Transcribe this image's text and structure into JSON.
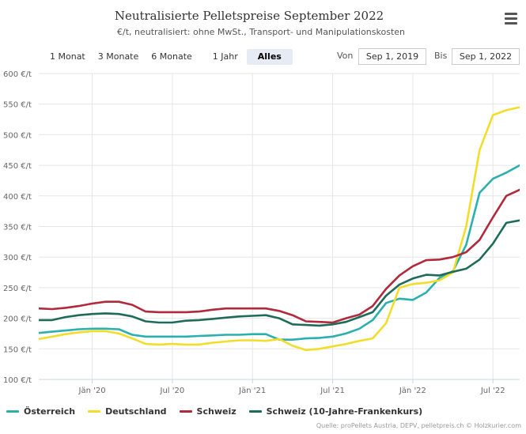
{
  "title": "Neutralisierte Pelletspreise September 2022",
  "subtitle": "€/t, neutralisiert: ohne MwSt., Transport- und Manipulationskosten",
  "range_selector": {
    "buttons": [
      "1 Monat",
      "3 Monate",
      "6 Monate",
      "1 Jahr",
      "Alles"
    ],
    "active": "Alles",
    "from_label": "Von",
    "from_value": "Sep 1, 2019",
    "to_label": "Bis",
    "to_value": "Sep 1, 2022"
  },
  "credits": "Quelle: proPellets Austria, DEPV, pelletpreis.ch © Holzkurier.com",
  "menu_icon": "hamburger-menu-icon",
  "chart_data": {
    "type": "line",
    "title": "Neutralisierte Pelletspreise September 2022",
    "ylim": [
      100,
      600
    ],
    "yticks": [
      100,
      150,
      200,
      250,
      300,
      350,
      400,
      450,
      500,
      550,
      600
    ],
    "ytick_labels": [
      "100 €/t",
      "150 €/t",
      "200 €/t",
      "250 €/t",
      "300 €/t",
      "350 €/t",
      "400 €/t",
      "450 €/t",
      "500 €/t",
      "550 €/t",
      "600 €/t"
    ],
    "xlim": [
      0,
      36
    ],
    "xticks": [
      4,
      10,
      16,
      22,
      28,
      34
    ],
    "xtick_labels": [
      "Jän '20",
      "Jul '20",
      "Jän '21",
      "Jul '21",
      "Jän '22",
      "Jul '22"
    ],
    "x": [
      0,
      1,
      2,
      3,
      4,
      5,
      6,
      7,
      8,
      9,
      10,
      11,
      12,
      13,
      14,
      15,
      16,
      17,
      18,
      19,
      20,
      21,
      22,
      23,
      24,
      25,
      26,
      27,
      28,
      29,
      30,
      31,
      32,
      33,
      34,
      35,
      36
    ],
    "series": [
      {
        "name": "Österreich",
        "color": "#2bb0b0",
        "values": [
          176,
          178,
          180,
          182,
          183,
          183,
          182,
          173,
          170,
          170,
          170,
          170,
          171,
          172,
          173,
          173,
          174,
          174,
          165,
          165,
          167,
          168,
          170,
          175,
          183,
          197,
          225,
          232,
          230,
          242,
          266,
          277,
          320,
          405,
          428,
          438,
          450
        ]
      },
      {
        "name": "Deutschland",
        "color": "#f2de2a",
        "values": [
          166,
          170,
          174,
          177,
          179,
          179,
          175,
          167,
          158,
          157,
          158,
          157,
          157,
          160,
          162,
          164,
          164,
          163,
          166,
          155,
          148,
          150,
          154,
          158,
          163,
          167,
          192,
          250,
          256,
          258,
          262,
          275,
          350,
          475,
          532,
          540,
          545
        ]
      },
      {
        "name": "Schweiz",
        "color": "#b02a3c",
        "values": [
          216,
          215,
          217,
          220,
          224,
          227,
          227,
          222,
          211,
          210,
          210,
          210,
          211,
          214,
          216,
          216,
          216,
          216,
          212,
          205,
          195,
          194,
          193,
          200,
          206,
          220,
          248,
          270,
          285,
          295,
          296,
          300,
          308,
          328,
          365,
          400,
          410
        ]
      },
      {
        "name": "Schweiz (10-Jahre-Frankenkurs)",
        "color": "#1e6b5a",
        "values": [
          197,
          197,
          202,
          205,
          207,
          208,
          207,
          203,
          195,
          193,
          193,
          196,
          197,
          199,
          201,
          203,
          204,
          205,
          200,
          190,
          189,
          188,
          190,
          194,
          202,
          210,
          237,
          255,
          265,
          271,
          270,
          276,
          281,
          296,
          322,
          356,
          360
        ]
      }
    ]
  }
}
